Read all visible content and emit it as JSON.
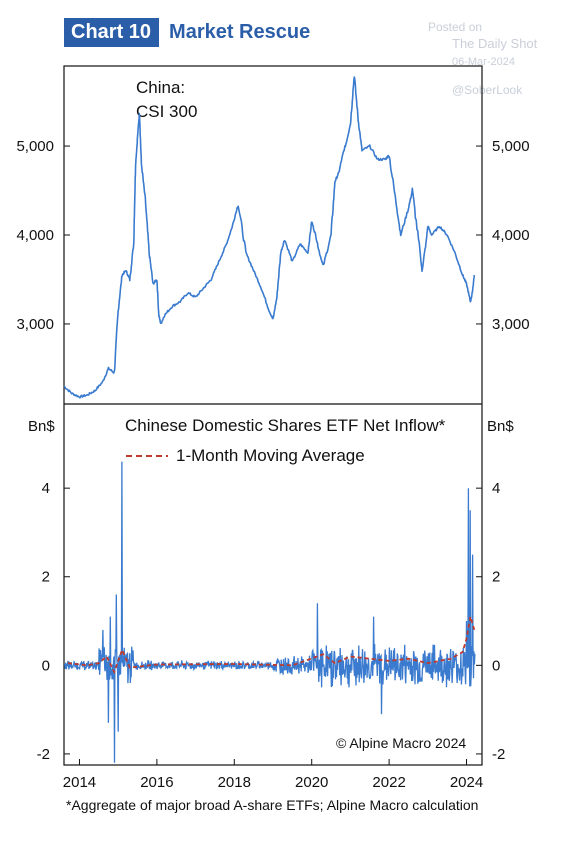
{
  "header": {
    "chart_number": "Chart 10",
    "title": "Market Rescue"
  },
  "watermark": {
    "line1": "Posted on",
    "line2": "The Daily Shot",
    "line3": "06-Mar-2024",
    "line4": "@SoberLook"
  },
  "footnote": "*Aggregate of major broad A-share ETFs; Alpine Macro calculation",
  "copyright": "© Alpine Macro 2024",
  "colors": {
    "accent": "#2a5ea8",
    "line": "#3a7bcf",
    "ma": "#c0392b"
  },
  "chart_data": [
    {
      "type": "line",
      "title": "China: CSI 300",
      "title_line1": "China:",
      "title_line2": "CSI 300",
      "ylim": [
        2100,
        5900
      ],
      "xlim": [
        2013.6,
        2024.4
      ],
      "yticks": [
        3000,
        4000,
        5000
      ],
      "ytick_labels": [
        "3,000",
        "4,000",
        "5,000"
      ],
      "series": [
        {
          "values_x": [
            2013.6,
            2013.8,
            2014.0,
            2014.2,
            2014.4,
            2014.6,
            2014.75,
            2014.9,
            2015.0,
            2015.1,
            2015.2,
            2015.3,
            2015.4,
            2015.45,
            2015.5,
            2015.55,
            2015.6,
            2015.7,
            2015.8,
            2015.9,
            2016.0,
            2016.05,
            2016.1,
            2016.2,
            2016.4,
            2016.6,
            2016.8,
            2017.0,
            2017.2,
            2017.4,
            2017.6,
            2017.8,
            2017.95,
            2018.1,
            2018.3,
            2018.5,
            2018.7,
            2018.9,
            2019.0,
            2019.1,
            2019.2,
            2019.3,
            2019.5,
            2019.7,
            2019.9,
            2020.0,
            2020.1,
            2020.2,
            2020.3,
            2020.5,
            2020.6,
            2020.7,
            2020.8,
            2020.9,
            2021.0,
            2021.1,
            2021.2,
            2021.3,
            2021.5,
            2021.7,
            2021.9,
            2022.0,
            2022.2,
            2022.3,
            2022.5,
            2022.6,
            2022.8,
            2022.85,
            2022.95,
            2023.0,
            2023.1,
            2023.3,
            2023.5,
            2023.7,
            2023.9,
            2024.0,
            2024.1,
            2024.15,
            2024.2
          ],
          "values_y": [
            2300,
            2220,
            2180,
            2200,
            2250,
            2350,
            2500,
            2450,
            3150,
            3550,
            3600,
            3500,
            3900,
            4800,
            5100,
            5380,
            4800,
            4400,
            3800,
            3450,
            3500,
            3100,
            3000,
            3100,
            3200,
            3250,
            3350,
            3300,
            3400,
            3500,
            3700,
            3900,
            4100,
            4350,
            3800,
            3600,
            3400,
            3150,
            3050,
            3300,
            3800,
            3950,
            3700,
            3900,
            3800,
            4150,
            4000,
            3800,
            3650,
            4000,
            4600,
            4700,
            4900,
            5050,
            5250,
            5800,
            5300,
            4950,
            5000,
            4850,
            4850,
            4900,
            4300,
            4000,
            4300,
            4500,
            3800,
            3600,
            3900,
            4100,
            4000,
            4100,
            4000,
            3800,
            3550,
            3450,
            3250,
            3350,
            3550
          ]
        }
      ]
    },
    {
      "type": "line",
      "title": "Chinese Domestic Shares ETF Net Inflow*",
      "ylabel": "Bn$",
      "ylim": [
        -2.25,
        5.9
      ],
      "xlim": [
        2013.6,
        2024.4
      ],
      "yticks": [
        -2,
        0,
        2,
        4
      ],
      "ytick_labels": [
        "-2",
        "0",
        "2",
        "4"
      ],
      "xticks": [
        2014,
        2016,
        2018,
        2020,
        2022,
        2024
      ],
      "xtick_labels": [
        "2014",
        "2016",
        "2018",
        "2020",
        "2022",
        "2024"
      ],
      "legend": "1-Month Moving Average",
      "spikes": [
        {
          "x": 2014.6,
          "y": 0.8
        },
        {
          "x": 2014.75,
          "y": -1.3
        },
        {
          "x": 2014.8,
          "y": 1.1
        },
        {
          "x": 2015.1,
          "y": 4.6
        },
        {
          "x": 2014.9,
          "y": -2.2
        },
        {
          "x": 2014.95,
          "y": 1.6
        },
        {
          "x": 2015.0,
          "y": -1.5
        },
        {
          "x": 2020.15,
          "y": 1.4
        },
        {
          "x": 2021.6,
          "y": 1.1
        },
        {
          "x": 2021.8,
          "y": -1.1
        },
        {
          "x": 2024.05,
          "y": 4.0
        },
        {
          "x": 2024.1,
          "y": 3.5
        },
        {
          "x": 2024.15,
          "y": 2.5
        },
        {
          "x": 2024.0,
          "y": 1.0
        }
      ],
      "moving_average": [
        {
          "x": 2013.7,
          "y": 0.05
        },
        {
          "x": 2014.2,
          "y": 0.0
        },
        {
          "x": 2014.5,
          "y": 0.05
        },
        {
          "x": 2014.7,
          "y": 0.2
        },
        {
          "x": 2014.9,
          "y": -0.15
        },
        {
          "x": 2015.1,
          "y": 0.35
        },
        {
          "x": 2015.3,
          "y": -0.05
        },
        {
          "x": 2016.0,
          "y": 0.02
        },
        {
          "x": 2018.0,
          "y": 0.03
        },
        {
          "x": 2019.5,
          "y": 0.0
        },
        {
          "x": 2020.3,
          "y": 0.25
        },
        {
          "x": 2020.6,
          "y": 0.05
        },
        {
          "x": 2021.0,
          "y": 0.2
        },
        {
          "x": 2021.5,
          "y": 0.15
        },
        {
          "x": 2022.0,
          "y": 0.1
        },
        {
          "x": 2022.5,
          "y": 0.15
        },
        {
          "x": 2023.0,
          "y": 0.05
        },
        {
          "x": 2023.6,
          "y": 0.15
        },
        {
          "x": 2023.9,
          "y": 0.3
        },
        {
          "x": 2024.0,
          "y": 0.6
        },
        {
          "x": 2024.1,
          "y": 1.1
        },
        {
          "x": 2024.2,
          "y": 0.8
        }
      ]
    }
  ]
}
